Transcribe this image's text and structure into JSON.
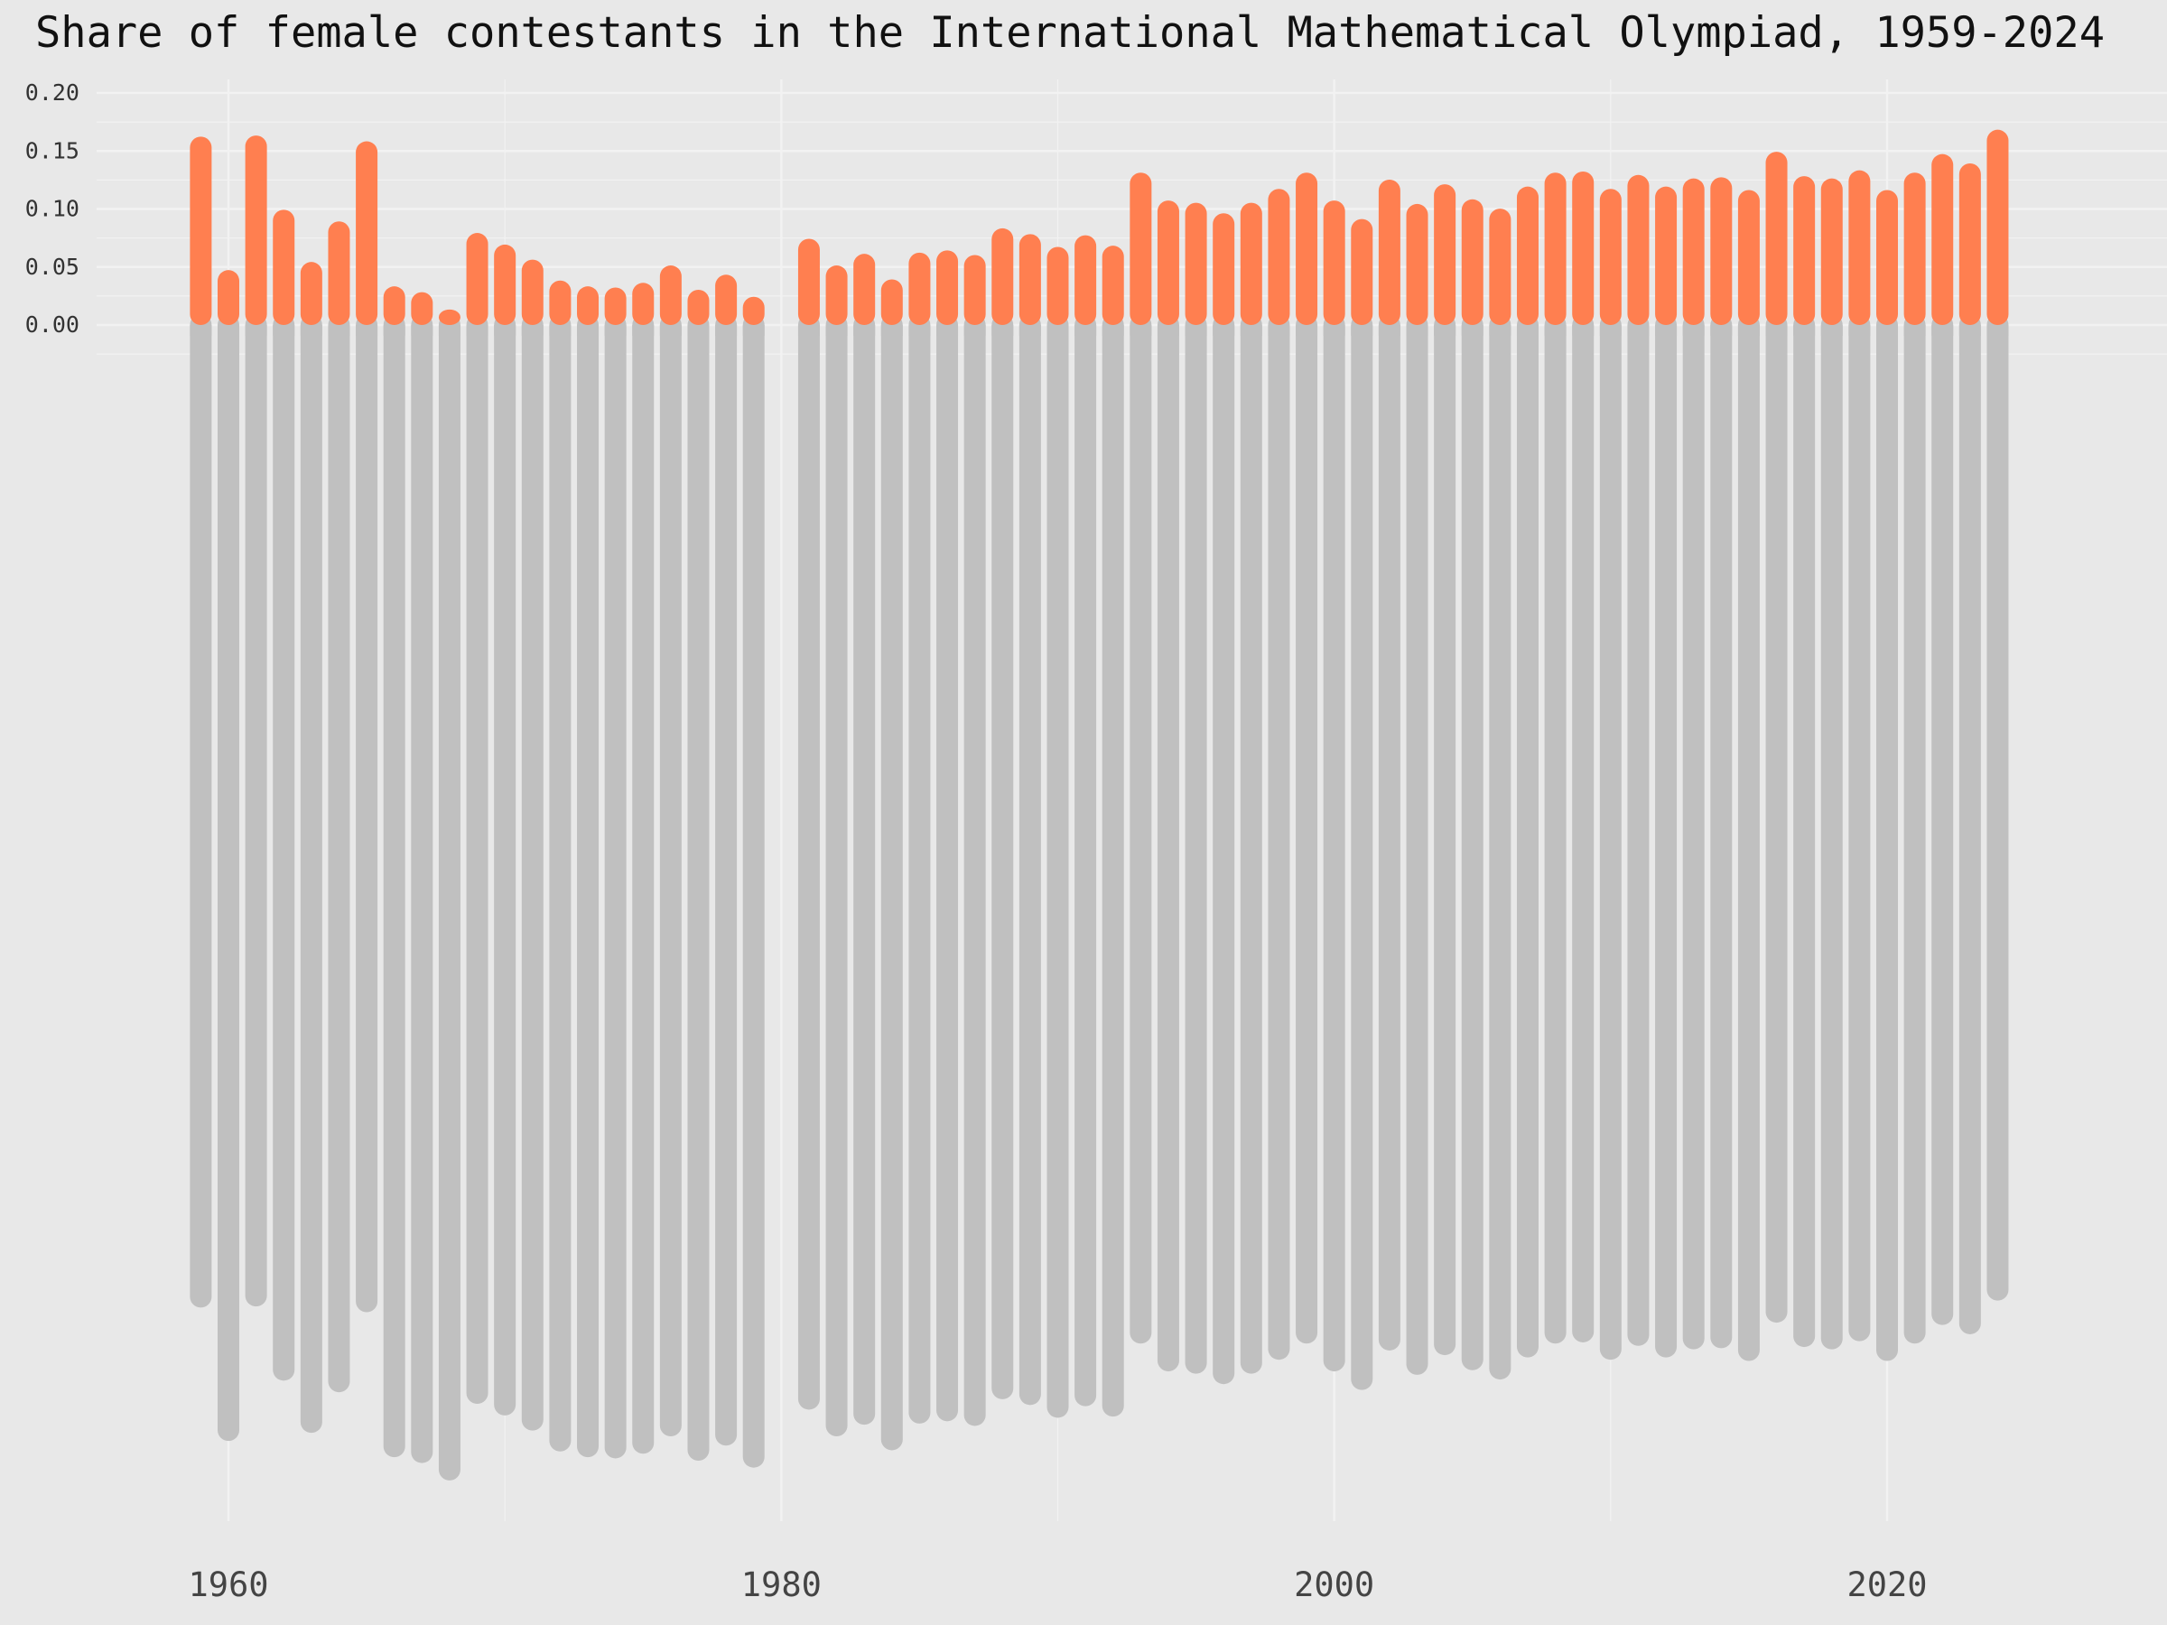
{
  "chart_data": {
    "type": "bar",
    "title": "Share of female contestants in the International Mathematical Olympiad, 1959-2024",
    "xlabel": "",
    "ylabel": "",
    "ylim": [
      0,
      0.2
    ],
    "y_ticks": [
      "0.00",
      "0.05",
      "0.10",
      "0.15",
      "0.20"
    ],
    "x_ticks": [
      "1960",
      "1980",
      "2000",
      "2020"
    ],
    "xlim": [
      1955,
      2028
    ],
    "grid": true,
    "legend": "none",
    "colors": {
      "female": "#ff7f50",
      "rest": "#c0c0c0",
      "background": "#e8e8e8",
      "grid": "#f2f2f2"
    },
    "series": [
      {
        "x": [
          1959,
          1960,
          1961,
          1962,
          1963,
          1964,
          1965,
          1966,
          1967,
          1968,
          1969,
          1970,
          1971,
          1972,
          1973,
          1974,
          1975,
          1976,
          1977,
          1978,
          1979,
          1981,
          1982,
          1983,
          1984,
          1985,
          1986,
          1987,
          1988,
          1989,
          1990,
          1991,
          1992,
          1993,
          1994,
          1995,
          1996,
          1997,
          1998,
          1999,
          2000,
          2001,
          2002,
          2003,
          2004,
          2005,
          2006,
          2007,
          2008,
          2009,
          2010,
          2011,
          2012,
          2013,
          2014,
          2015,
          2016,
          2017,
          2018,
          2019,
          2020,
          2021,
          2022,
          2023,
          2024
        ],
        "values": [
          0.153,
          0.038,
          0.154,
          0.09,
          0.045,
          0.08,
          0.149,
          0.024,
          0.019,
          0.004,
          0.07,
          0.06,
          0.047,
          0.029,
          0.024,
          0.023,
          0.027,
          0.042,
          0.021,
          0.034,
          0.015,
          0.065,
          0.042,
          0.052,
          0.03,
          0.053,
          0.055,
          0.051,
          0.074,
          0.069,
          0.058,
          0.068,
          0.059,
          0.122,
          0.098,
          0.096,
          0.087,
          0.096,
          0.108,
          0.122,
          0.098,
          0.082,
          0.116,
          0.095,
          0.112,
          0.099,
          0.091,
          0.11,
          0.122,
          0.123,
          0.108,
          0.12,
          0.11,
          0.117,
          0.118,
          0.107,
          0.14,
          0.119,
          0.117,
          0.124,
          0.107,
          0.122,
          0.138,
          0.13,
          0.159
        ],
        "rest": [
          0.847,
          0.962,
          0.846,
          0.91,
          0.955,
          0.92,
          0.851,
          0.976,
          0.981,
          0.996,
          0.93,
          0.94,
          0.953,
          0.971,
          0.976,
          0.977,
          0.973,
          0.958,
          0.979,
          0.966,
          0.985,
          0.935,
          0.958,
          0.948,
          0.97,
          0.947,
          0.945,
          0.949,
          0.926,
          0.931,
          0.942,
          0.932,
          0.941,
          0.878,
          0.902,
          0.904,
          0.913,
          0.904,
          0.892,
          0.878,
          0.902,
          0.918,
          0.884,
          0.905,
          0.888,
          0.901,
          0.909,
          0.89,
          0.878,
          0.877,
          0.892,
          0.88,
          0.89,
          0.883,
          0.882,
          0.893,
          0.86,
          0.881,
          0.883,
          0.876,
          0.893,
          0.878,
          0.862,
          0.87,
          0.841
        ]
      }
    ]
  }
}
